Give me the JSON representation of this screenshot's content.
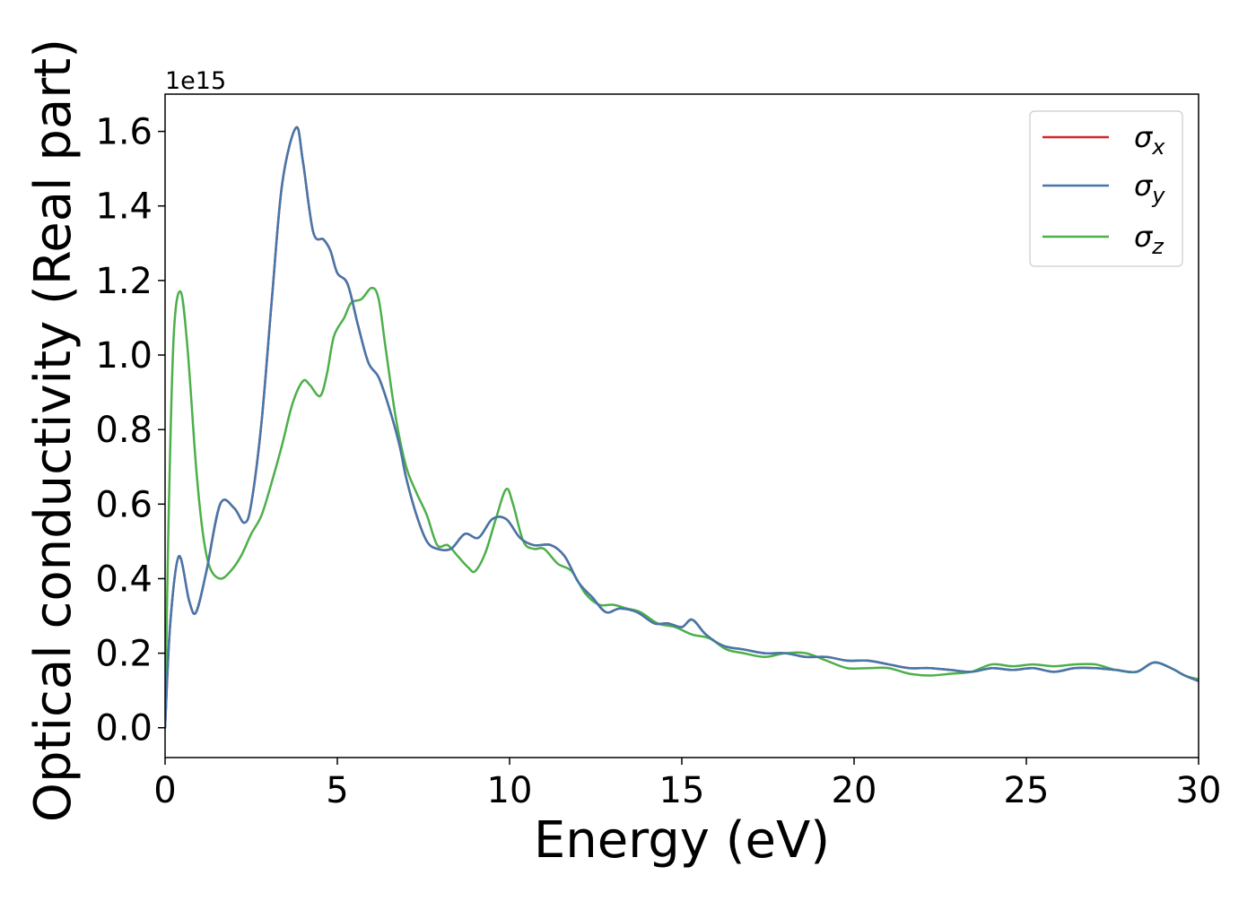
{
  "chart_data": {
    "type": "line",
    "xlabel": "Energy (eV)",
    "ylabel": "Optical conductivity (Real part)",
    "y_offset_text": "1e15",
    "y_scale_factor": 1000000000000000.0,
    "xlim": [
      0,
      30
    ],
    "ylim": [
      -0.08,
      1.7
    ],
    "x_ticks": [
      0,
      5,
      10,
      15,
      20,
      25,
      30
    ],
    "x_tick_labels": [
      "0",
      "5",
      "10",
      "15",
      "20",
      "25",
      "30"
    ],
    "y_ticks": [
      0.0,
      0.2,
      0.4,
      0.6,
      0.8,
      1.0,
      1.2,
      1.4,
      1.6
    ],
    "y_tick_labels": [
      "0.0",
      "0.2",
      "0.4",
      "0.6",
      "0.8",
      "1.0",
      "1.2",
      "1.4",
      "1.6"
    ],
    "grid": false,
    "legend_position": "upper right",
    "series": [
      {
        "name": "σx",
        "color": "#d62728",
        "x": [
          0,
          0.15,
          0.4,
          0.7,
          0.9,
          1.2,
          1.6,
          2.0,
          2.3,
          2.5,
          2.8,
          3.1,
          3.4,
          3.8,
          4.0,
          4.3,
          4.6,
          4.8,
          5.0,
          5.3,
          5.6,
          5.9,
          6.2,
          6.5,
          6.8,
          7.0,
          7.3,
          7.6,
          7.9,
          8.3,
          8.7,
          9.1,
          9.5,
          9.9,
          10.3,
          10.7,
          11.2,
          11.6,
          12.0,
          12.4,
          12.8,
          13.2,
          13.7,
          14.2,
          14.6,
          15.0,
          15.3,
          15.7,
          16.2,
          16.8,
          17.4,
          18.0,
          18.6,
          19.2,
          19.8,
          20.4,
          21.0,
          21.6,
          22.2,
          22.8,
          23.4,
          24.0,
          24.6,
          25.2,
          25.8,
          26.4,
          27.0,
          27.6,
          28.2,
          28.7,
          29.2,
          29.6,
          30.0
        ],
        "values": [
          0.0,
          0.28,
          0.46,
          0.34,
          0.31,
          0.42,
          0.6,
          0.59,
          0.55,
          0.6,
          0.82,
          1.15,
          1.46,
          1.61,
          1.52,
          1.33,
          1.31,
          1.28,
          1.22,
          1.19,
          1.08,
          0.98,
          0.94,
          0.86,
          0.76,
          0.67,
          0.57,
          0.5,
          0.48,
          0.48,
          0.52,
          0.51,
          0.56,
          0.56,
          0.51,
          0.49,
          0.49,
          0.46,
          0.39,
          0.35,
          0.31,
          0.32,
          0.31,
          0.28,
          0.28,
          0.27,
          0.29,
          0.25,
          0.22,
          0.21,
          0.2,
          0.2,
          0.19,
          0.19,
          0.18,
          0.18,
          0.17,
          0.16,
          0.16,
          0.155,
          0.15,
          0.16,
          0.155,
          0.16,
          0.15,
          0.16,
          0.16,
          0.155,
          0.15,
          0.175,
          0.16,
          0.14,
          0.125
        ]
      },
      {
        "name": "σy",
        "color": "#4477aa",
        "x": [
          0,
          0.15,
          0.4,
          0.7,
          0.9,
          1.2,
          1.6,
          2.0,
          2.3,
          2.5,
          2.8,
          3.1,
          3.4,
          3.8,
          4.0,
          4.3,
          4.6,
          4.8,
          5.0,
          5.3,
          5.6,
          5.9,
          6.2,
          6.5,
          6.8,
          7.0,
          7.3,
          7.6,
          7.9,
          8.3,
          8.7,
          9.1,
          9.5,
          9.9,
          10.3,
          10.7,
          11.2,
          11.6,
          12.0,
          12.4,
          12.8,
          13.2,
          13.7,
          14.2,
          14.6,
          15.0,
          15.3,
          15.7,
          16.2,
          16.8,
          17.4,
          18.0,
          18.6,
          19.2,
          19.8,
          20.4,
          21.0,
          21.6,
          22.2,
          22.8,
          23.4,
          24.0,
          24.6,
          25.2,
          25.8,
          26.4,
          27.0,
          27.6,
          28.2,
          28.7,
          29.2,
          29.6,
          30.0
        ],
        "values": [
          0.0,
          0.28,
          0.46,
          0.34,
          0.31,
          0.42,
          0.6,
          0.59,
          0.55,
          0.6,
          0.82,
          1.15,
          1.46,
          1.61,
          1.52,
          1.33,
          1.31,
          1.28,
          1.22,
          1.19,
          1.08,
          0.98,
          0.94,
          0.86,
          0.76,
          0.67,
          0.57,
          0.5,
          0.48,
          0.48,
          0.52,
          0.51,
          0.56,
          0.56,
          0.51,
          0.49,
          0.49,
          0.46,
          0.39,
          0.35,
          0.31,
          0.32,
          0.31,
          0.28,
          0.28,
          0.27,
          0.29,
          0.25,
          0.22,
          0.21,
          0.2,
          0.2,
          0.19,
          0.19,
          0.18,
          0.18,
          0.17,
          0.16,
          0.16,
          0.155,
          0.15,
          0.16,
          0.155,
          0.16,
          0.15,
          0.16,
          0.16,
          0.155,
          0.15,
          0.175,
          0.16,
          0.14,
          0.125
        ]
      },
      {
        "name": "σz",
        "color": "#4daf4a",
        "x": [
          0,
          0.1,
          0.25,
          0.45,
          0.65,
          0.9,
          1.1,
          1.3,
          1.6,
          1.9,
          2.2,
          2.5,
          2.8,
          3.1,
          3.4,
          3.7,
          4.0,
          4.2,
          4.5,
          4.7,
          4.9,
          5.2,
          5.4,
          5.7,
          6.0,
          6.2,
          6.4,
          6.7,
          7.0,
          7.3,
          7.6,
          7.9,
          8.2,
          8.5,
          8.8,
          9.0,
          9.3,
          9.6,
          9.9,
          10.1,
          10.4,
          10.7,
          11.0,
          11.4,
          11.8,
          12.2,
          12.6,
          13.0,
          13.4,
          13.8,
          14.3,
          14.8,
          15.3,
          15.8,
          16.3,
          16.8,
          17.4,
          18.0,
          18.6,
          19.2,
          19.8,
          20.4,
          21.0,
          21.6,
          22.2,
          22.8,
          23.4,
          24.0,
          24.6,
          25.2,
          25.8,
          26.4,
          27.0,
          27.6,
          28.2,
          28.7,
          29.2,
          29.6,
          30.0
        ],
        "values": [
          0.0,
          0.55,
          1.05,
          1.17,
          1.02,
          0.7,
          0.52,
          0.43,
          0.4,
          0.42,
          0.46,
          0.52,
          0.57,
          0.66,
          0.76,
          0.87,
          0.93,
          0.92,
          0.89,
          0.95,
          1.05,
          1.1,
          1.14,
          1.15,
          1.18,
          1.15,
          1.02,
          0.83,
          0.7,
          0.63,
          0.57,
          0.49,
          0.49,
          0.46,
          0.43,
          0.42,
          0.47,
          0.56,
          0.64,
          0.6,
          0.5,
          0.48,
          0.48,
          0.44,
          0.42,
          0.36,
          0.33,
          0.33,
          0.32,
          0.31,
          0.28,
          0.27,
          0.25,
          0.24,
          0.21,
          0.2,
          0.19,
          0.2,
          0.2,
          0.18,
          0.16,
          0.16,
          0.16,
          0.145,
          0.14,
          0.145,
          0.15,
          0.17,
          0.165,
          0.17,
          0.165,
          0.17,
          0.17,
          0.155,
          0.15,
          0.175,
          0.16,
          0.14,
          0.13
        ]
      }
    ]
  }
}
